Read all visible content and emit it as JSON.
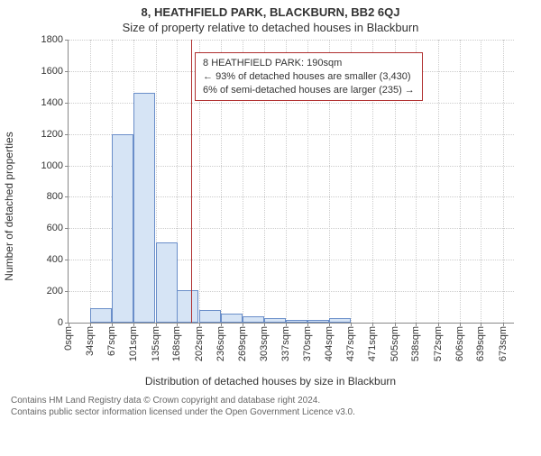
{
  "title_main": "8, HEATHFIELD PARK, BLACKBURN, BB2 6QJ",
  "title_sub": "Size of property relative to detached houses in Blackburn",
  "y_axis_label": "Number of detached properties",
  "x_axis_title": "Distribution of detached houses by size in Blackburn",
  "footer_line1": "Contains HM Land Registry data © Crown copyright and database right 2024.",
  "footer_line2": "Contains public sector information licensed under the Open Government Licence v3.0.",
  "chart": {
    "type": "histogram",
    "background": "#ffffff",
    "grid_color": "#cccccc",
    "axis_color": "#888888",
    "text_color": "#333333",
    "ylim": [
      0,
      1800
    ],
    "ytick_step": 200,
    "yticks": [
      0,
      200,
      400,
      600,
      800,
      1000,
      1200,
      1400,
      1600,
      1800
    ],
    "xlim": [
      0,
      690
    ],
    "xticks": [
      0,
      34,
      67,
      101,
      135,
      168,
      202,
      236,
      269,
      303,
      337,
      370,
      404,
      437,
      471,
      505,
      538,
      572,
      606,
      639,
      673
    ],
    "xtick_suffix": "sqm",
    "bar_fill": "#d6e4f5",
    "bar_stroke": "#6a8ec9",
    "bar_binwidth": 33.65,
    "bars": [
      {
        "x0": 34,
        "count": 90
      },
      {
        "x0": 67,
        "count": 1200
      },
      {
        "x0": 101,
        "count": 1460
      },
      {
        "x0": 135,
        "count": 510
      },
      {
        "x0": 168,
        "count": 205
      },
      {
        "x0": 202,
        "count": 80
      },
      {
        "x0": 236,
        "count": 55
      },
      {
        "x0": 269,
        "count": 40
      },
      {
        "x0": 303,
        "count": 30
      },
      {
        "x0": 336,
        "count": 20
      },
      {
        "x0": 370,
        "count": 15
      },
      {
        "x0": 404,
        "count": 30
      }
    ],
    "reference_line": {
      "x": 190,
      "color": "#b03030",
      "width": 1.5
    },
    "annotation": {
      "border_color": "#b03030",
      "background": "#ffffff",
      "line1": "8 HEATHFIELD PARK: 190sqm",
      "line2": "← 93% of detached houses are smaller (3,430)",
      "line3": "6% of semi-detached houses are larger (235) →",
      "x": 195,
      "y_top_value": 1720
    },
    "label_fontsize": 11,
    "title_fontsize": 13
  }
}
